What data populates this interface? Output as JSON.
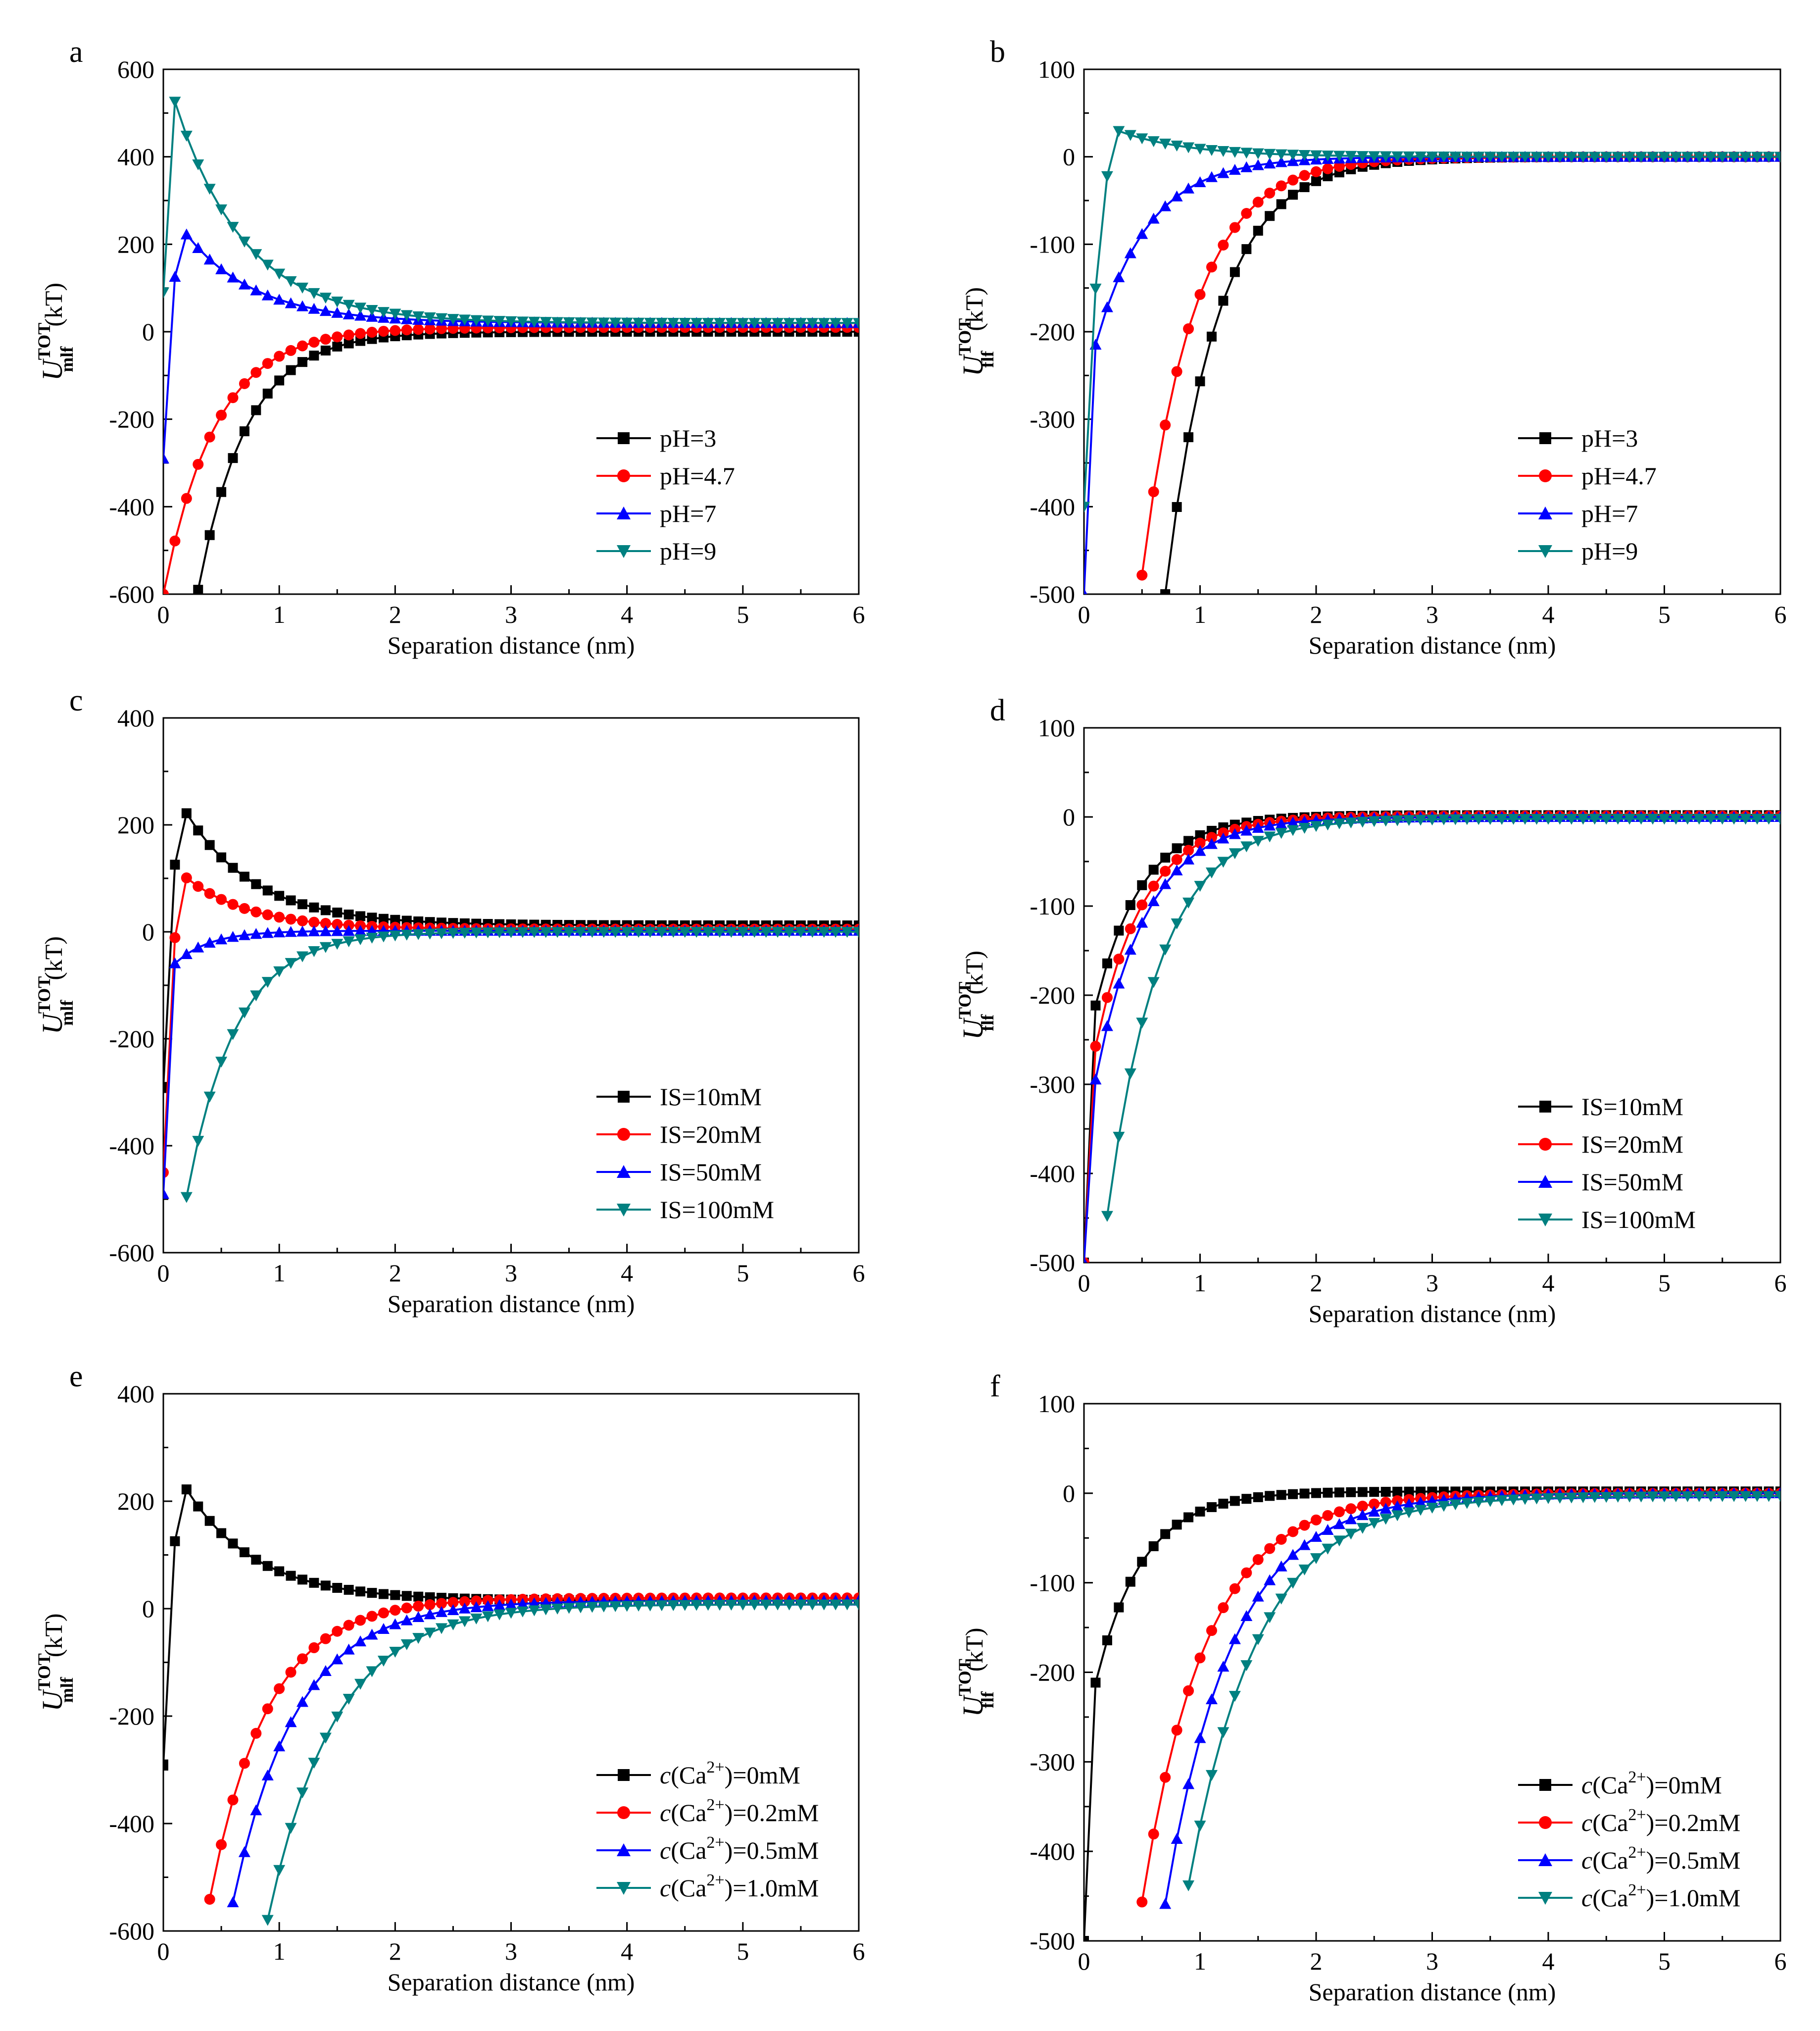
{
  "figure": {
    "description_none": ""
  },
  "chart_data": [
    {
      "panel": "a",
      "type": "line",
      "xlabel": "Separation distance (nm)",
      "ylabel": {
        "main": "U",
        "sup": "TOT",
        "sub": "mlf",
        "unit": "(kT)"
      },
      "xlim": [
        0,
        6
      ],
      "ylim": [
        -600,
        600
      ],
      "xticks": [
        0,
        1,
        2,
        3,
        4,
        5,
        6
      ],
      "yticks": [
        -600,
        -400,
        -200,
        0,
        200,
        400,
        600
      ],
      "legend_position": "bottom-right",
      "series": [
        {
          "name": "pH=3",
          "color": "#000000",
          "marker": "square",
          "a": -590,
          "lambda": 0.42,
          "shift": 0.3,
          "peak": null,
          "tail": 0
        },
        {
          "name": "pH=4.7",
          "color": "#ff0000",
          "marker": "circle",
          "a": -600,
          "lambda": 0.45,
          "shift": 0.0,
          "peak": null,
          "tail": 10
        },
        {
          "name": "pH=7",
          "color": "#0000ff",
          "marker": "triangle-up",
          "a": 240,
          "lambda": 0.6,
          "shift": 0.15,
          "peak": -290,
          "tail": 20
        },
        {
          "name": "pH=9",
          "color": "#008080",
          "marker": "triangle-down",
          "a": 570,
          "lambda": 0.6,
          "shift": 0.05,
          "peak": 90,
          "tail": 20
        }
      ]
    },
    {
      "panel": "b",
      "type": "line",
      "xlabel": "Separation distance (nm)",
      "ylabel": {
        "main": "U",
        "sup": "TOT",
        "sub": "flf",
        "unit": "(kT)"
      },
      "xlim": [
        0,
        6
      ],
      "ylim": [
        -500,
        100
      ],
      "xticks": [
        0,
        1,
        2,
        3,
        4,
        5,
        6
      ],
      "yticks": [
        -500,
        -400,
        -300,
        -200,
        -100,
        0,
        100
      ],
      "legend_position": "bottom-right",
      "series": [
        {
          "name": "pH=3",
          "color": "#000000",
          "marker": "square",
          "a": -500,
          "lambda": 0.45,
          "shift": 0.7,
          "peak": null,
          "tail": 0
        },
        {
          "name": "pH=4.7",
          "color": "#ff0000",
          "marker": "circle",
          "a": -500,
          "lambda": 0.45,
          "shift": 0.48,
          "peak": null,
          "tail": 0
        },
        {
          "name": "pH=7",
          "color": "#0000ff",
          "marker": "triangle-up",
          "a": -240,
          "lambda": 0.45,
          "shift": 0.05,
          "peak": -500,
          "tail": 0
        },
        {
          "name": "pH=9",
          "color": "#008080",
          "marker": "triangle-down",
          "a": 32,
          "lambda": 0.6,
          "shift": 0.25,
          "peak": -400,
          "tail": 0
        }
      ]
    },
    {
      "panel": "c",
      "type": "line",
      "xlabel": "Separation distance (nm)",
      "ylabel": {
        "main": "U",
        "sup": "TOT",
        "sub": "mlf",
        "unit": "(kT)"
      },
      "xlim": [
        0,
        6
      ],
      "ylim": [
        -600,
        400
      ],
      "xticks": [
        0,
        1,
        2,
        3,
        4,
        5,
        6
      ],
      "yticks": [
        -600,
        -400,
        -200,
        0,
        200,
        400
      ],
      "legend_position": "bottom-right",
      "series": [
        {
          "name": "IS=10mM",
          "color": "#000000",
          "marker": "square",
          "a": 240,
          "lambda": 0.6,
          "shift": 0.15,
          "peak": -290,
          "tail": 12
        },
        {
          "name": "IS=20mM",
          "color": "#ff0000",
          "marker": "circle",
          "a": 110,
          "lambda": 0.55,
          "shift": 0.15,
          "peak": -450,
          "tail": 5
        },
        {
          "name": "IS=50mM",
          "color": "#0000ff",
          "marker": "triangle-up",
          "a": -70,
          "lambda": 0.3,
          "shift": 0.05,
          "peak": -490,
          "tail": 2
        },
        {
          "name": "IS=100mM",
          "color": "#008080",
          "marker": "triangle-down",
          "a": -600,
          "lambda": 0.42,
          "shift": 0.12,
          "peak": null,
          "tail": 0
        }
      ]
    },
    {
      "panel": "d",
      "type": "line",
      "xlabel": "Separation distance (nm)",
      "ylabel": {
        "main": "U",
        "sup": "TOT",
        "sub": "flf",
        "unit": "(kT)"
      },
      "xlim": [
        0,
        6
      ],
      "ylim": [
        -500,
        100
      ],
      "xticks": [
        0,
        1,
        2,
        3,
        4,
        5,
        6
      ],
      "yticks": [
        -500,
        -400,
        -300,
        -200,
        -100,
        0,
        100
      ],
      "legend_position": "bottom-right",
      "series": [
        {
          "name": "IS=10mM",
          "color": "#000000",
          "marker": "square",
          "a": -240,
          "lambda": 0.4,
          "shift": 0.05,
          "peak": -500,
          "tail": 2
        },
        {
          "name": "IS=20mM",
          "color": "#ff0000",
          "marker": "circle",
          "a": -290,
          "lambda": 0.42,
          "shift": 0.05,
          "peak": -500,
          "tail": 1
        },
        {
          "name": "IS=50mM",
          "color": "#0000ff",
          "marker": "triangle-up",
          "a": -330,
          "lambda": 0.44,
          "shift": 0.05,
          "peak": -500,
          "tail": 0
        },
        {
          "name": "IS=100mM",
          "color": "#008080",
          "marker": "triangle-down",
          "a": -500,
          "lambda": 0.45,
          "shift": 0.15,
          "peak": null,
          "tail": -2
        }
      ]
    },
    {
      "panel": "e",
      "type": "line",
      "xlabel": "Separation distance (nm)",
      "ylabel": {
        "main": "U",
        "sup": "TOT",
        "sub": "mlf",
        "unit": "(kT)"
      },
      "xlim": [
        0,
        6
      ],
      "ylim": [
        -600,
        400
      ],
      "xticks": [
        0,
        1,
        2,
        3,
        4,
        5,
        6
      ],
      "yticks": [
        -600,
        -400,
        -200,
        0,
        200,
        400
      ],
      "legend_position": "bottom-right",
      "series": [
        {
          "name": "c(Ca2+)=0mM",
          "label_prefix": "c",
          "label_ion": "(Ca",
          "label_charge": "2+",
          "label_rest": ")=0mM",
          "color": "#000000",
          "marker": "square",
          "a": 240,
          "lambda": 0.6,
          "shift": 0.15,
          "peak": -290,
          "tail": 15
        },
        {
          "name": "c(Ca2+)=0.2mM",
          "label_prefix": "c",
          "label_ion": "(Ca",
          "label_charge": "2+",
          "label_rest": ")=0.2mM",
          "color": "#ff0000",
          "marker": "circle",
          "a": -600,
          "lambda": 0.5,
          "shift": 0.35,
          "peak": null,
          "tail": 20
        },
        {
          "name": "c(Ca2+)=0.5mM",
          "label_prefix": "c",
          "label_ion": "(Ca",
          "label_charge": "2+",
          "label_rest": ")=0.5mM",
          "color": "#0000ff",
          "marker": "triangle-up",
          "a": -600,
          "lambda": 0.55,
          "shift": 0.55,
          "peak": null,
          "tail": 15
        },
        {
          "name": "c(Ca2+)=1.0mM",
          "label_prefix": "c",
          "label_ion": "(Ca",
          "label_charge": "2+",
          "label_rest": ")=1.0mM",
          "color": "#008080",
          "marker": "triangle-down",
          "a": -600,
          "lambda": 0.58,
          "shift": 0.88,
          "peak": null,
          "tail": 8
        }
      ]
    },
    {
      "panel": "f",
      "type": "line",
      "xlabel": "Separation distance (nm)",
      "ylabel": {
        "main": "U",
        "sup": "TOT",
        "sub": "flf",
        "unit": "(kT)"
      },
      "xlim": [
        0,
        6
      ],
      "ylim": [
        -500,
        100
      ],
      "xticks": [
        0,
        1,
        2,
        3,
        4,
        5,
        6
      ],
      "yticks": [
        -500,
        -400,
        -300,
        -200,
        -100,
        0,
        100
      ],
      "legend_position": "bottom-right",
      "series": [
        {
          "name": "c(Ca2+)=0mM",
          "label_prefix": "c",
          "label_ion": "(Ca",
          "label_charge": "2+",
          "label_rest": ")=0mM",
          "color": "#000000",
          "marker": "square",
          "a": -240,
          "lambda": 0.4,
          "shift": 0.05,
          "peak": -500,
          "tail": 2
        },
        {
          "name": "c(Ca2+)=0.2mM",
          "label_prefix": "c",
          "label_ion": "(Ca",
          "label_charge": "2+",
          "label_rest": ")=0.2mM",
          "color": "#ff0000",
          "marker": "circle",
          "a": -500,
          "lambda": 0.55,
          "shift": 0.45,
          "peak": null,
          "tail": 0
        },
        {
          "name": "c(Ca2+)=0.5mM",
          "label_prefix": "c",
          "label_ion": "(Ca",
          "label_charge": "2+",
          "label_rest": ")=0.5mM",
          "color": "#0000ff",
          "marker": "triangle-up",
          "a": -500,
          "lambda": 0.58,
          "shift": 0.65,
          "peak": null,
          "tail": 0
        },
        {
          "name": "c(Ca2+)=1.0mM",
          "label_prefix": "c",
          "label_ion": "(Ca",
          "label_charge": "2+",
          "label_rest": ")=1.0mM",
          "color": "#008080",
          "marker": "triangle-down",
          "a": -500,
          "lambda": 0.6,
          "shift": 0.82,
          "peak": null,
          "tail": -3
        }
      ]
    }
  ]
}
